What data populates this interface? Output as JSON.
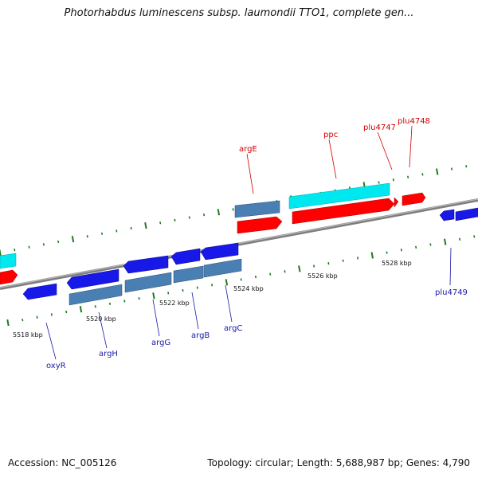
{
  "title": "Photorhabdus luminescens subsp. laumondii TTO1, complete gen...",
  "footer": {
    "accession": "Accession: NC_005126",
    "summary": "Topology: circular; Length: 5,688,987 bp; Genes: 4,790"
  },
  "colors": {
    "backbone": "#8a8a8a",
    "tick": "#1f7a1f",
    "red": "#ff0000",
    "cyan": "#00e8ef",
    "blue": "#1818e8",
    "steel": "#4a7fb3",
    "label_red": "#d40000",
    "label_blue": "#1a1aa6"
  },
  "axis_labels": [
    {
      "text": "5518 kbp"
    },
    {
      "text": "5520 kbp"
    },
    {
      "text": "5522 kbp"
    },
    {
      "text": "5524 kbp"
    },
    {
      "text": "5526 kbp"
    },
    {
      "text": "5528 kbp"
    }
  ],
  "gene_labels": {
    "argE": "argE",
    "ppc": "ppc",
    "plu4747": "plu4747",
    "plu4748": "plu4748",
    "plu4749": "plu4749",
    "oxyR": "oxyR",
    "argH": "argH",
    "argG": "argG",
    "argB": "argB",
    "argC": "argC"
  }
}
